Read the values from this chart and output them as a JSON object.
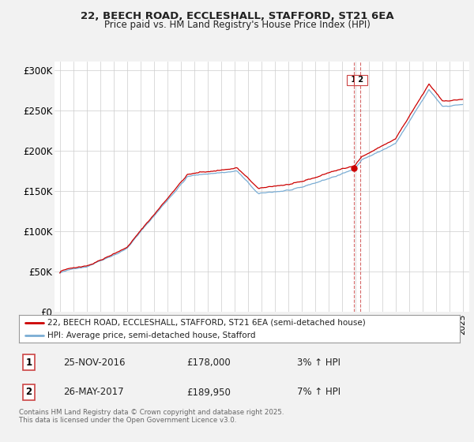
{
  "title": "22, BEECH ROAD, ECCLESHALL, STAFFORD, ST21 6EA",
  "subtitle": "Price paid vs. HM Land Registry's House Price Index (HPI)",
  "ylim": [
    0,
    310000
  ],
  "yticks": [
    0,
    50000,
    100000,
    150000,
    200000,
    250000,
    300000
  ],
  "ytick_labels": [
    "£0",
    "£50K",
    "£100K",
    "£150K",
    "£200K",
    "£250K",
    "£300K"
  ],
  "legend_line1": "22, BEECH ROAD, ECCLESHALL, STAFFORD, ST21 6EA (semi-detached house)",
  "legend_line2": "HPI: Average price, semi-detached house, Stafford",
  "transaction1_date": "25-NOV-2016",
  "transaction1_price": "£178,000",
  "transaction1_hpi": "3% ↑ HPI",
  "transaction2_date": "26-MAY-2017",
  "transaction2_price": "£189,950",
  "transaction2_hpi": "7% ↑ HPI",
  "footer": "Contains HM Land Registry data © Crown copyright and database right 2025.\nThis data is licensed under the Open Government Licence v3.0.",
  "line_color_red": "#cc0000",
  "line_color_blue": "#7aadd4",
  "vline_color": "#cc4444",
  "background_color": "#f2f2f2",
  "plot_bg_color": "#ffffff",
  "transaction1_x": 2016.88,
  "transaction2_x": 2017.4
}
